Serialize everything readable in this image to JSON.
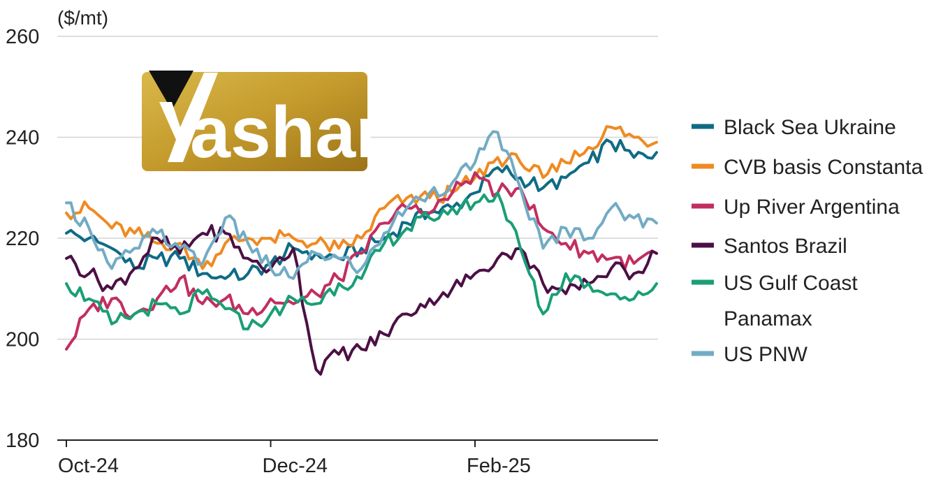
{
  "logo": {
    "text": "ashar"
  },
  "chart_data": {
    "type": "line",
    "ylabel": "($/mt)",
    "ylim": [
      180,
      260
    ],
    "yticks": [
      180,
      200,
      220,
      240,
      260
    ],
    "x_tick_labels": [
      {
        "label": "Oct-24",
        "week": 0
      },
      {
        "label": "Dec-24",
        "week": 9
      },
      {
        "label": "Feb-25",
        "week": 18
      }
    ],
    "xlim": [
      0,
      26
    ],
    "grid": "horizontal",
    "legend_position": "right",
    "series": [
      {
        "name": "Black Sea Ukraine",
        "color": "#0f6b85",
        "values": [
          221,
          220,
          218,
          214,
          216,
          216,
          213,
          212,
          213,
          215,
          218,
          217,
          216,
          218,
          220,
          223,
          225,
          226,
          229,
          234,
          232,
          230,
          232,
          235,
          239,
          236,
          237
        ]
      },
      {
        "name": "CVB basis Constanta",
        "color": "#ef8a22",
        "values": [
          225,
          226,
          222,
          221,
          219,
          219,
          214,
          219,
          220,
          220,
          220,
          219,
          218,
          220,
          226,
          228,
          228,
          229,
          232,
          236,
          235,
          232,
          235,
          238,
          242,
          240,
          239
        ]
      },
      {
        "name": "Up River Argentina",
        "color": "#c22e5f",
        "values": [
          198,
          206,
          208,
          205,
          208,
          212,
          207,
          208,
          205,
          208,
          207,
          209,
          212,
          217,
          223,
          226,
          225,
          229,
          233,
          229,
          230,
          222,
          219,
          217,
          216,
          215,
          217
        ]
      },
      {
        "name": "Santos Brazil",
        "color": "#4b1045",
        "values": [
          216,
          213,
          210,
          214,
          220,
          217,
          221,
          221,
          216,
          214,
          218,
          194,
          197,
          198,
          201,
          205,
          208,
          210,
          213,
          216,
          218,
          211,
          209,
          211,
          214,
          213,
          217
        ]
      },
      {
        "name": "US Gulf Coast Panamax",
        "color": "#1a9e76",
        "values": [
          211,
          208,
          203,
          205,
          207,
          205,
          209,
          206,
          202,
          205,
          208,
          207,
          211,
          212,
          219,
          222,
          224,
          226,
          227,
          229,
          218,
          205,
          213,
          211,
          209,
          208,
          211
        ]
      },
      {
        "name": "US PNW",
        "color": "#72abc4",
        "values": [
          227,
          222,
          214,
          218,
          221,
          218,
          215,
          224,
          219,
          214,
          212,
          217,
          216,
          214,
          221,
          226,
          229,
          231,
          235,
          241,
          230,
          218,
          222,
          220,
          226,
          224,
          223
        ]
      }
    ]
  }
}
